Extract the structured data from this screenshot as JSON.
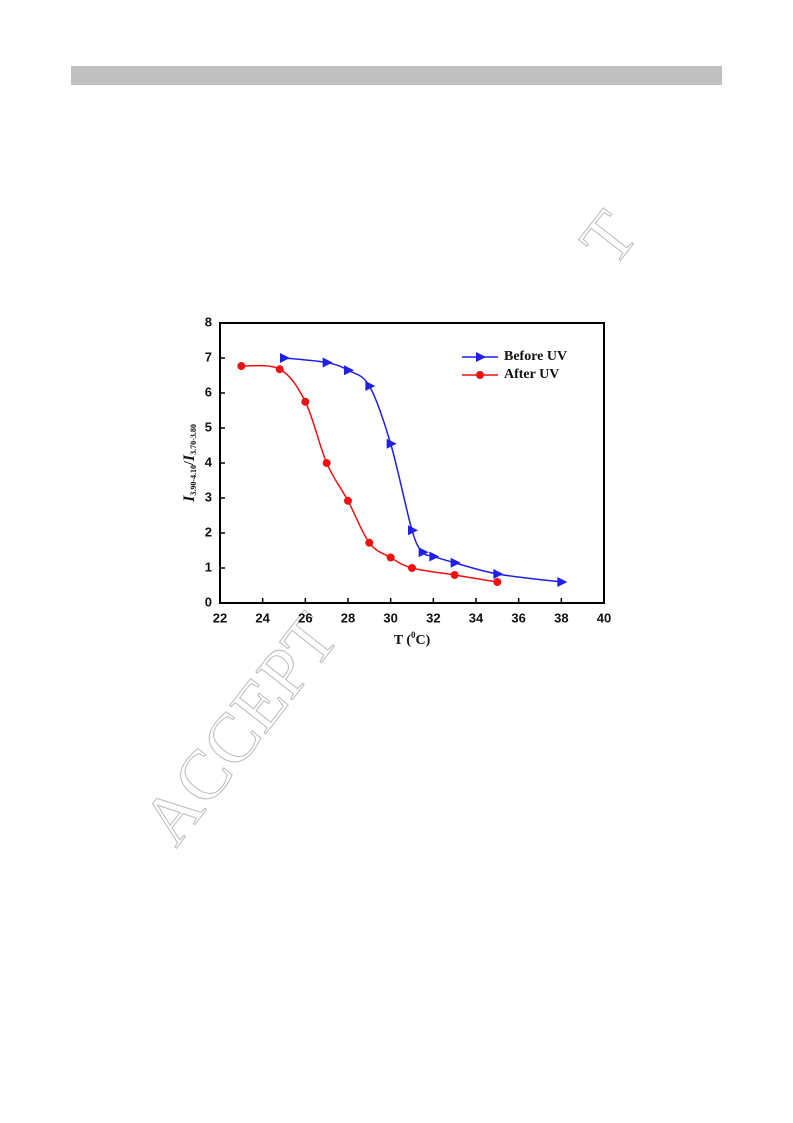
{
  "watermark": [
    "ACCEPT",
    "T"
  ],
  "chart_data": {
    "type": "line",
    "x_label": [
      "T (",
      "0",
      "C)"
    ],
    "y_label": [
      "I",
      "3.90-4.10",
      "/",
      "I",
      "3.70-3.80"
    ],
    "xlim": [
      22,
      40
    ],
    "xticks": [
      22,
      24,
      26,
      28,
      30,
      32,
      34,
      36,
      38,
      40
    ],
    "ylim": [
      0,
      8
    ],
    "yticks": [
      0,
      1,
      2,
      3,
      4,
      5,
      6,
      7,
      8
    ],
    "legend": "upper right",
    "series": [
      {
        "name": "Before UV",
        "color": "#1f1fe6",
        "marker": "triangle",
        "x": [
          25,
          27,
          28,
          29,
          30,
          31,
          31.5,
          32,
          33,
          35,
          38
        ],
        "values": [
          7.0,
          6.87,
          6.65,
          6.2,
          4.55,
          2.08,
          1.45,
          1.33,
          1.15,
          0.83,
          0.6
        ]
      },
      {
        "name": "After UV",
        "color": "#ee1111",
        "marker": "circle",
        "x": [
          23,
          24.8,
          26,
          27,
          28,
          29,
          30,
          31,
          33,
          35
        ],
        "values": [
          6.77,
          6.68,
          5.75,
          4.0,
          2.92,
          1.72,
          1.3,
          1.0,
          0.8,
          0.6
        ]
      }
    ]
  }
}
